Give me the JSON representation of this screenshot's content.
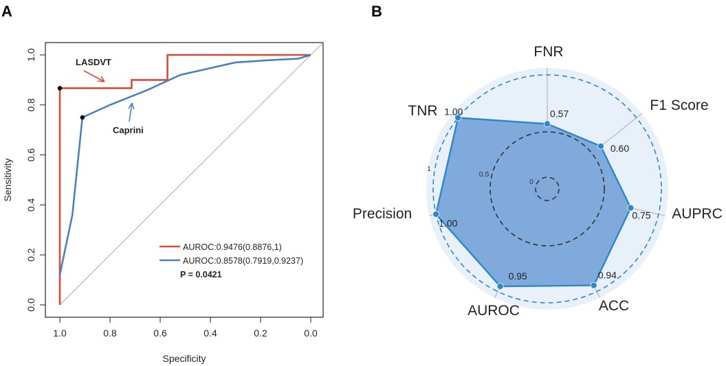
{
  "panels": {
    "a_label": "A",
    "b_label": "B"
  },
  "colors": {
    "lasdvt": "#d94a34",
    "caprini": "#4d7fbd",
    "radar_fill": "#6f9fd6",
    "radar_line": "#2e86c9",
    "radar_bg": "#e8f1fa",
    "diagonal": "#a8a8a8"
  },
  "chart_data": [
    {
      "type": "line",
      "title": "",
      "xlabel": "Specificity",
      "ylabel": "Sensitivity",
      "xlim": [
        1.0,
        0.0
      ],
      "ylim": [
        0.0,
        1.0
      ],
      "x_ticks": [
        "1.0",
        "0.8",
        "0.6",
        "0.4",
        "0.2",
        "0.0"
      ],
      "y_ticks": [
        "0.0",
        "0.2",
        "0.4",
        "0.6",
        "0.8",
        "1.0"
      ],
      "grid": false,
      "series": [
        {
          "name": "LASDVT",
          "legend": "AUROC:0.9476(0.8876,1)",
          "color": "#d94a34",
          "points": [
            [
              1.0,
              0.0
            ],
            [
              1.0,
              0.867
            ],
            [
              0.714,
              0.867
            ],
            [
              0.714,
              0.9
            ],
            [
              0.571,
              0.9
            ],
            [
              0.571,
              1.0
            ],
            [
              0.0,
              1.0
            ]
          ],
          "cutoff": [
            1.0,
            0.867
          ]
        },
        {
          "name": "Caprini",
          "legend": "AUROC:0.8578(0.7919,0.9237)",
          "color": "#4d7fbd",
          "points": [
            [
              1.0,
              0.12
            ],
            [
              0.95,
              0.36
            ],
            [
              0.91,
              0.75
            ],
            [
              0.8,
              0.8
            ],
            [
              0.65,
              0.86
            ],
            [
              0.52,
              0.92
            ],
            [
              0.3,
              0.97
            ],
            [
              0.15,
              0.98
            ],
            [
              0.05,
              0.985
            ],
            [
              0.0,
              1.0
            ]
          ],
          "cutoff": [
            0.91,
            0.75
          ]
        }
      ],
      "annotations": [
        "LASDVT",
        "Caprini"
      ],
      "p_value": "P = 0.0421",
      "legend_position": "bottom-right"
    },
    {
      "type": "radar",
      "axes": [
        "FNR",
        "F1 Score",
        "AUPRC",
        "ACC",
        "AUROC",
        "Precision",
        "TNR"
      ],
      "values": [
        0.57,
        0.6,
        0.75,
        0.94,
        0.95,
        1.0,
        1.0
      ],
      "value_labels": [
        "0.57",
        "0.60",
        "0.75",
        "0.94",
        "0.95",
        "1.00",
        "1.00"
      ],
      "rings": [
        "0",
        "0.5",
        "1"
      ],
      "range": [
        0,
        1
      ]
    }
  ]
}
